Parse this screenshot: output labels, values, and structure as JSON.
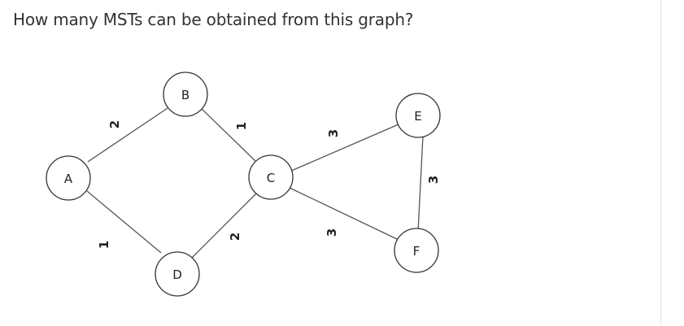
{
  "question": "How many MSTs can be obtained from this graph?",
  "graph": {
    "nodes": {
      "A": "A",
      "B": "B",
      "C": "C",
      "D": "D",
      "E": "E",
      "F": "F"
    },
    "edges": [
      {
        "from": "A",
        "to": "B",
        "weight": "2"
      },
      {
        "from": "A",
        "to": "D",
        "weight": "1"
      },
      {
        "from": "B",
        "to": "C",
        "weight": "1"
      },
      {
        "from": "D",
        "to": "C",
        "weight": "2"
      },
      {
        "from": "C",
        "to": "E",
        "weight": "3"
      },
      {
        "from": "C",
        "to": "F",
        "weight": "3"
      },
      {
        "from": "E",
        "to": "F",
        "weight": "3"
      }
    ]
  }
}
